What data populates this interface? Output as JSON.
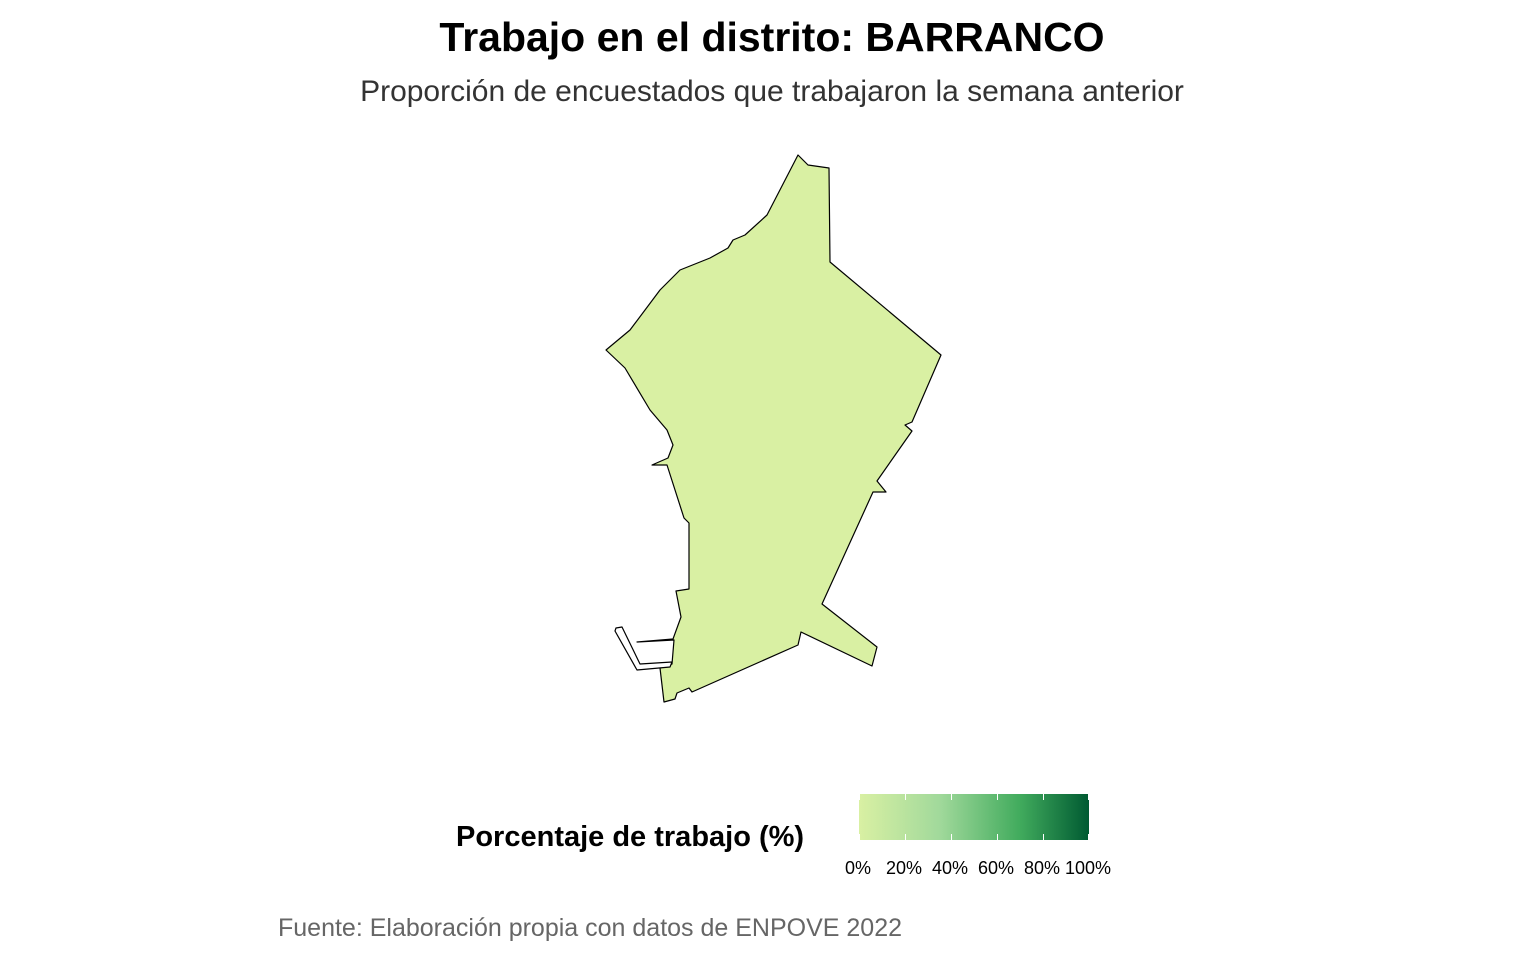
{
  "title": "Trabajo en el distrito: BARRANCO",
  "subtitle": "Proporción de encuestados que trabajaron la semana anterior",
  "caption": "Fuente: Elaboración propia con datos de ENPOVE 2022",
  "map": {
    "district": "BARRANCO",
    "fill_color": "#d9f0a3",
    "stroke_color": "#000000"
  },
  "legend": {
    "title": "Porcentaje de trabajo (%)",
    "color_low": "#d9f0a3",
    "color_mid": "#41ab5d",
    "color_high": "#005a32",
    "labels": [
      "0%",
      "20%",
      "40%",
      "60%",
      "80%",
      "100%"
    ]
  }
}
